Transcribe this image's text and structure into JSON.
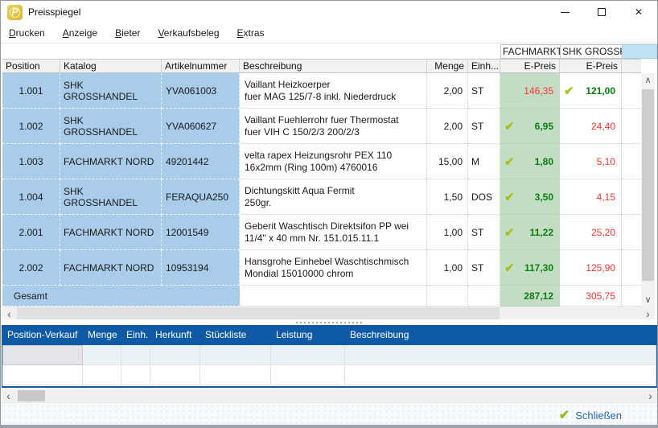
{
  "window": {
    "title": "Preisspiegel"
  },
  "menu": {
    "items": [
      {
        "key": "D",
        "rest": "rucken"
      },
      {
        "key": "A",
        "rest": "nzeige"
      },
      {
        "key": "B",
        "rest": "ieter"
      },
      {
        "key": "V",
        "rest": "erkaufsbeleg"
      },
      {
        "key": "E",
        "rest": "xtras"
      }
    ]
  },
  "bidders": {
    "bidder1": "FACHMARKT",
    "bidder2": "SHK GROSSHANDEL"
  },
  "table": {
    "columns": {
      "position": "Position",
      "katalog": "Katalog",
      "artikelnummer": "Artikelnummer",
      "beschreibung": "Beschreibung",
      "menge": "Menge",
      "einheit": "Einh...",
      "epreis1": "E-Preis",
      "epreis2": "E-Preis"
    },
    "rows": [
      {
        "position": "1.001",
        "katalog": "SHK GROSSHANDEL",
        "artikelnummer": "YVA061003",
        "beschreibung": [
          "Vaillant Heizkoerper",
          "fuer MAG 125/7-8 inkl. Niederdruck"
        ],
        "menge": "2,00",
        "einheit": "ST",
        "preis1": {
          "value": "146,35",
          "best": false
        },
        "preis2": {
          "value": "121,00",
          "best": true
        }
      },
      {
        "position": "1.002",
        "katalog": "SHK GROSSHANDEL",
        "artikelnummer": "YVA060627",
        "beschreibung": [
          "Vaillant Fuehlerrohr fuer Thermostat",
          "fuer VIH C 150/2/3 200/2/3"
        ],
        "menge": "2,00",
        "einheit": "ST",
        "preis1": {
          "value": "6,95",
          "best": true
        },
        "preis2": {
          "value": "24,40",
          "best": false
        }
      },
      {
        "position": "1.003",
        "katalog": "FACHMARKT NORD",
        "artikelnummer": "49201442",
        "beschreibung": [
          "velta rapex Heizungsrohr PEX 110",
          "16x2mm  (Ring 100m) 4760016"
        ],
        "menge": "15,00",
        "einheit": "M",
        "preis1": {
          "value": "1,80",
          "best": true
        },
        "preis2": {
          "value": "5,10",
          "best": false
        }
      },
      {
        "position": "1.004",
        "katalog": "SHK GROSSHANDEL",
        "artikelnummer": "FERAQUA250",
        "beschreibung": [
          "Dichtungskitt Aqua Fermit",
          "250gr."
        ],
        "menge": "1,50",
        "einheit": "DOS",
        "preis1": {
          "value": "3,50",
          "best": true
        },
        "preis2": {
          "value": "4,15",
          "best": false
        }
      },
      {
        "position": "2.001",
        "katalog": "FACHMARKT NORD",
        "artikelnummer": "12001549",
        "beschreibung": [
          "Geberit Waschtisch Direktsifon PP wei",
          "11/4\" x 40 mm Nr. 151.015.11.1"
        ],
        "menge": "1,00",
        "einheit": "ST",
        "preis1": {
          "value": "11,22",
          "best": true
        },
        "preis2": {
          "value": "25,20",
          "best": false
        }
      },
      {
        "position": "2.002",
        "katalog": "FACHMARKT NORD",
        "artikelnummer": "10953194",
        "beschreibung": [
          "Hansgrohe Einhebel Waschtischmisch",
          "Mondial 15010000 chrom"
        ],
        "menge": "1,00",
        "einheit": "ST",
        "preis1": {
          "value": "117,30",
          "best": true
        },
        "preis2": {
          "value": "125,90",
          "best": false
        }
      }
    ],
    "gesamt": {
      "label": "Gesamt",
      "preis1": "287,12",
      "preis2": "305,75"
    }
  },
  "detail_table": {
    "columns": [
      "Position-Verkauf",
      "Menge",
      "Einh.",
      "Herkunft",
      "Stückliste",
      "Leistung",
      "Beschreibung"
    ]
  },
  "footer": {
    "close_label": "Schließen"
  },
  "colors": {
    "row_blue": "#a9ccea",
    "best_column_green": "#c3ddc5",
    "best_price_green": "#0b7c0e",
    "other_price_red": "#fa3232",
    "check_green": "#a9c018",
    "detail_header_blue": "#0f5aa6",
    "close_link_blue": "#2a66a8",
    "app_icon_gold": "#d9b62e"
  }
}
